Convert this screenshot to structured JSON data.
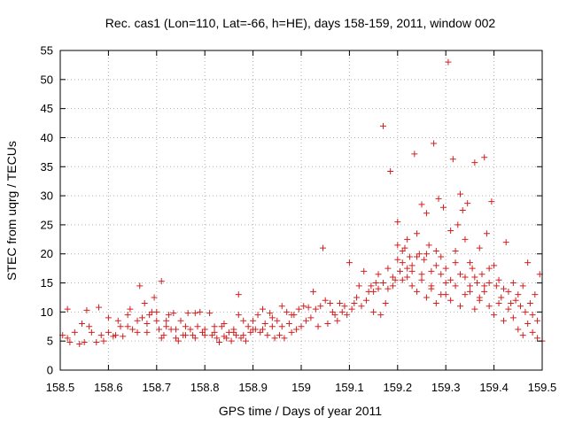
{
  "chart_data": {
    "type": "scatter",
    "title": "Rec. cas1 (Lon=110, Lat=-66, h=HE), days 158-159, 2011, window 002",
    "xlabel": "GPS time / Days of year 2011",
    "ylabel": "STEC from uqrg / TECUs",
    "xlim": [
      158.5,
      159.5
    ],
    "ylim": [
      0,
      55
    ],
    "xticks": [
      "158.5",
      "158.6",
      "158.7",
      "158.8",
      "158.9",
      "159",
      "159.1",
      "159.2",
      "159.3",
      "159.4",
      "159.5"
    ],
    "yticks": [
      "0",
      "5",
      "10",
      "15",
      "20",
      "25",
      "30",
      "35",
      "40",
      "45",
      "50",
      "55"
    ],
    "grid": true,
    "marker": "+",
    "marker_color": "#d22020",
    "points": [
      [
        158.505,
        6.0
      ],
      [
        158.515,
        10.5
      ],
      [
        158.515,
        5.5
      ],
      [
        158.52,
        4.8
      ],
      [
        158.53,
        6.5
      ],
      [
        158.54,
        4.5
      ],
      [
        158.545,
        8.0
      ],
      [
        158.55,
        4.8
      ],
      [
        158.555,
        10.3
      ],
      [
        158.56,
        7.5
      ],
      [
        158.565,
        6.5
      ],
      [
        158.575,
        4.8
      ],
      [
        158.58,
        10.8
      ],
      [
        158.585,
        6.0
      ],
      [
        158.59,
        5.0
      ],
      [
        158.6,
        6.5
      ],
      [
        158.61,
        5.8
      ],
      [
        158.615,
        6.0
      ],
      [
        158.625,
        7.5
      ],
      [
        158.63,
        5.8
      ],
      [
        158.64,
        9.5
      ],
      [
        158.645,
        10.5
      ],
      [
        158.65,
        7.0
      ],
      [
        158.66,
        8.5
      ],
      [
        158.665,
        14.5
      ],
      [
        158.67,
        9.0
      ],
      [
        158.675,
        11.5
      ],
      [
        158.68,
        6.5
      ],
      [
        158.685,
        9.5
      ],
      [
        158.69,
        10.0
      ],
      [
        158.695,
        12.5
      ],
      [
        158.7,
        8.5
      ],
      [
        158.705,
        7.0
      ],
      [
        158.71,
        15.3
      ],
      [
        158.71,
        5.5
      ],
      [
        158.715,
        6.0
      ],
      [
        158.72,
        7.5
      ],
      [
        158.725,
        9.5
      ],
      [
        158.73,
        7.0
      ],
      [
        158.735,
        9.8
      ],
      [
        158.74,
        5.5
      ],
      [
        158.745,
        5.0
      ],
      [
        158.75,
        8.5
      ],
      [
        158.755,
        6.0
      ],
      [
        158.76,
        7.5
      ],
      [
        158.765,
        9.8
      ],
      [
        158.77,
        7.0
      ],
      [
        158.775,
        6.0
      ],
      [
        158.78,
        9.8
      ],
      [
        158.785,
        7.5
      ],
      [
        158.79,
        10.0
      ],
      [
        158.795,
        6.5
      ],
      [
        158.8,
        7.0
      ],
      [
        158.81,
        9.8
      ],
      [
        158.815,
        6.0
      ],
      [
        158.82,
        6.5
      ],
      [
        158.825,
        5.5
      ],
      [
        158.83,
        4.8
      ],
      [
        158.835,
        7.5
      ],
      [
        158.84,
        5.8
      ],
      [
        158.845,
        5.5
      ],
      [
        158.85,
        6.5
      ],
      [
        158.855,
        5.0
      ],
      [
        158.86,
        7.0
      ],
      [
        158.865,
        6.0
      ],
      [
        158.87,
        13.0
      ],
      [
        158.87,
        9.5
      ],
      [
        158.875,
        5.5
      ],
      [
        158.88,
        6.0
      ],
      [
        158.885,
        5.0
      ],
      [
        158.89,
        7.5
      ],
      [
        158.895,
        6.5
      ],
      [
        158.9,
        8.5
      ],
      [
        158.905,
        7.0
      ],
      [
        158.91,
        9.5
      ],
      [
        158.915,
        6.5
      ],
      [
        158.92,
        7.0
      ],
      [
        158.925,
        8.0
      ],
      [
        158.93,
        6.0
      ],
      [
        158.935,
        9.8
      ],
      [
        158.94,
        7.5
      ],
      [
        158.945,
        5.5
      ],
      [
        158.95,
        8.5
      ],
      [
        158.955,
        6.0
      ],
      [
        158.96,
        7.5
      ],
      [
        158.965,
        5.5
      ],
      [
        158.97,
        10.0
      ],
      [
        158.975,
        8.0
      ],
      [
        158.98,
        6.5
      ],
      [
        158.985,
        9.5
      ],
      [
        158.99,
        7.0
      ],
      [
        158.995,
        10.5
      ],
      [
        159.0,
        7.5
      ],
      [
        159.005,
        11.0
      ],
      [
        159.01,
        8.5
      ],
      [
        159.015,
        10.8
      ],
      [
        159.02,
        9.0
      ],
      [
        159.025,
        13.5
      ],
      [
        159.03,
        10.5
      ],
      [
        159.035,
        7.5
      ],
      [
        159.04,
        11.0
      ],
      [
        159.045,
        21.0
      ],
      [
        159.05,
        12.0
      ],
      [
        159.055,
        8.0
      ],
      [
        159.06,
        11.5
      ],
      [
        159.065,
        10.0
      ],
      [
        159.07,
        9.5
      ],
      [
        159.075,
        8.5
      ],
      [
        159.08,
        11.5
      ],
      [
        159.085,
        10.0
      ],
      [
        159.09,
        11.0
      ],
      [
        159.095,
        9.5
      ],
      [
        159.1,
        18.5
      ],
      [
        159.105,
        10.5
      ],
      [
        159.11,
        11.5
      ],
      [
        159.115,
        12.5
      ],
      [
        159.12,
        14.5
      ],
      [
        159.125,
        11.0
      ],
      [
        159.13,
        17.0
      ],
      [
        159.135,
        12.0
      ],
      [
        159.14,
        13.5
      ],
      [
        159.145,
        14.5
      ],
      [
        159.15,
        10.0
      ],
      [
        159.155,
        15.0
      ],
      [
        159.16,
        14.0
      ],
      [
        159.165,
        9.5
      ],
      [
        159.17,
        42.0
      ],
      [
        159.175,
        11.5
      ],
      [
        159.18,
        14.0
      ],
      [
        159.185,
        34.2
      ],
      [
        159.19,
        16.0
      ],
      [
        159.195,
        15.5
      ],
      [
        159.2,
        25.5
      ],
      [
        159.205,
        17.0
      ],
      [
        159.21,
        15.5
      ],
      [
        159.215,
        21.0
      ],
      [
        159.22,
        17.5
      ],
      [
        159.225,
        19.5
      ],
      [
        159.23,
        14.5
      ],
      [
        159.235,
        37.2
      ],
      [
        159.24,
        23.5
      ],
      [
        159.245,
        20.0
      ],
      [
        159.25,
        28.5
      ],
      [
        159.255,
        19.0
      ],
      [
        159.26,
        27.0
      ],
      [
        159.265,
        21.5
      ],
      [
        159.27,
        17.0
      ],
      [
        159.275,
        39.0
      ],
      [
        159.28,
        20.5
      ],
      [
        159.285,
        29.5
      ],
      [
        159.29,
        16.5
      ],
      [
        159.295,
        28.0
      ],
      [
        159.3,
        15.0
      ],
      [
        159.305,
        53.0
      ],
      [
        159.31,
        24.0
      ],
      [
        159.315,
        36.3
      ],
      [
        159.32,
        20.5
      ],
      [
        159.325,
        25.0
      ],
      [
        159.33,
        30.3
      ],
      [
        159.335,
        27.5
      ],
      [
        159.34,
        22.5
      ],
      [
        159.345,
        28.7
      ],
      [
        159.35,
        18.5
      ],
      [
        159.355,
        17.5
      ],
      [
        159.36,
        35.7
      ],
      [
        159.365,
        15.0
      ],
      [
        159.37,
        21.0
      ],
      [
        159.375,
        16.5
      ],
      [
        159.38,
        36.6
      ],
      [
        159.385,
        23.5
      ],
      [
        159.39,
        17.5
      ],
      [
        159.395,
        29.0
      ],
      [
        159.4,
        18.0
      ],
      [
        159.405,
        14.5
      ],
      [
        159.41,
        15.5
      ],
      [
        159.415,
        12.5
      ],
      [
        159.42,
        14.0
      ],
      [
        159.425,
        22.0
      ],
      [
        159.43,
        13.5
      ],
      [
        159.435,
        11.5
      ],
      [
        159.44,
        15.0
      ],
      [
        159.445,
        12.0
      ],
      [
        159.45,
        13.0
      ],
      [
        159.455,
        11.0
      ],
      [
        159.46,
        14.5
      ],
      [
        159.465,
        10.0
      ],
      [
        159.47,
        18.5
      ],
      [
        159.475,
        11.5
      ],
      [
        159.48,
        9.5
      ],
      [
        159.485,
        13.0
      ],
      [
        159.49,
        8.5
      ],
      [
        159.495,
        16.5
      ],
      [
        159.5,
        5.0
      ],
      [
        159.2,
        19.0
      ],
      [
        159.21,
        20.5
      ],
      [
        159.22,
        16.0
      ],
      [
        159.23,
        18.0
      ],
      [
        159.24,
        13.5
      ],
      [
        159.25,
        15.5
      ],
      [
        159.26,
        12.5
      ],
      [
        159.27,
        14.0
      ],
      [
        159.28,
        11.5
      ],
      [
        159.29,
        13.0
      ],
      [
        159.3,
        17.5
      ],
      [
        159.31,
        12.0
      ],
      [
        159.32,
        14.5
      ],
      [
        159.33,
        11.0
      ],
      [
        159.34,
        16.0
      ],
      [
        159.35,
        13.5
      ],
      [
        159.36,
        10.5
      ],
      [
        159.37,
        12.5
      ],
      [
        159.38,
        14.5
      ],
      [
        159.39,
        11.0
      ],
      [
        159.4,
        9.5
      ],
      [
        159.41,
        11.5
      ],
      [
        159.42,
        8.5
      ],
      [
        159.43,
        10.5
      ],
      [
        159.44,
        9.0
      ],
      [
        159.45,
        7.0
      ],
      [
        159.46,
        6.0
      ],
      [
        159.47,
        8.0
      ],
      [
        159.48,
        6.5
      ],
      [
        159.49,
        5.5
      ],
      [
        159.15,
        13.5
      ],
      [
        159.16,
        16.5
      ],
      [
        159.17,
        15.0
      ],
      [
        159.18,
        17.5
      ],
      [
        159.19,
        14.5
      ],
      [
        159.2,
        21.5
      ],
      [
        159.21,
        18.5
      ],
      [
        159.22,
        22.5
      ],
      [
        159.23,
        17.0
      ],
      [
        159.24,
        19.5
      ],
      [
        159.25,
        16.5
      ],
      [
        159.26,
        20.0
      ],
      [
        159.27,
        14.5
      ],
      [
        159.28,
        18.0
      ],
      [
        159.29,
        19.5
      ],
      [
        159.3,
        13.0
      ],
      [
        159.31,
        15.5
      ],
      [
        159.32,
        18.5
      ],
      [
        159.33,
        16.5
      ],
      [
        159.34,
        13.0
      ],
      [
        159.35,
        14.5
      ],
      [
        159.36,
        16.0
      ],
      [
        159.37,
        12.0
      ],
      [
        159.38,
        13.5
      ],
      [
        159.39,
        15.0
      ],
      [
        158.6,
        9.0
      ],
      [
        158.62,
        8.5
      ],
      [
        158.64,
        7.5
      ],
      [
        158.66,
        6.5
      ],
      [
        158.68,
        8.0
      ],
      [
        158.7,
        10.0
      ],
      [
        158.72,
        8.5
      ],
      [
        158.74,
        7.0
      ],
      [
        158.76,
        6.0
      ],
      [
        158.78,
        5.5
      ],
      [
        158.8,
        6.0
      ],
      [
        158.82,
        7.5
      ],
      [
        158.84,
        8.0
      ],
      [
        158.86,
        6.5
      ],
      [
        158.88,
        8.5
      ],
      [
        158.9,
        7.0
      ],
      [
        158.92,
        10.5
      ],
      [
        158.94,
        9.0
      ],
      [
        158.96,
        11.0
      ],
      [
        158.98,
        9.5
      ]
    ]
  }
}
